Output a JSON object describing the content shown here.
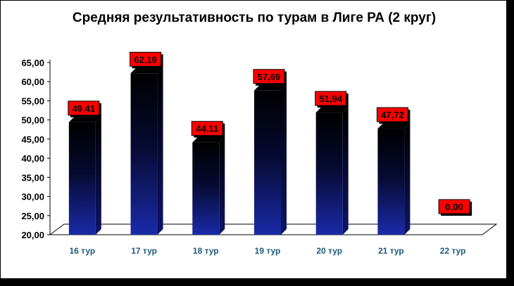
{
  "chart_data": {
    "type": "bar",
    "title": "Средняя результативность по турам в Лиге РА (2 круг)",
    "categories": [
      "16 тур",
      "17 тур",
      "18 тур",
      "19 тур",
      "20 тур",
      "21 тур",
      "22 тур"
    ],
    "values": [
      49.41,
      62.19,
      44.11,
      57.69,
      51.94,
      47.72,
      0.0
    ],
    "data_labels": [
      "49,41",
      "62,19",
      "44,11",
      "57,69",
      "51,94",
      "47,72",
      "0,00"
    ],
    "ylim": [
      20,
      65
    ],
    "yticks": [
      "20,00",
      "25,00",
      "30,00",
      "35,00",
      "40,00",
      "45,00",
      "50,00",
      "55,00",
      "60,00",
      "65,00"
    ],
    "xlabel": "",
    "ylabel": "",
    "grid": false,
    "legend": "none",
    "colors": {
      "bar_top": "#000000",
      "bar_bottom": "#1a2aa8",
      "label_bg": "#ff0000",
      "xtick": "#1f5a7a"
    }
  }
}
